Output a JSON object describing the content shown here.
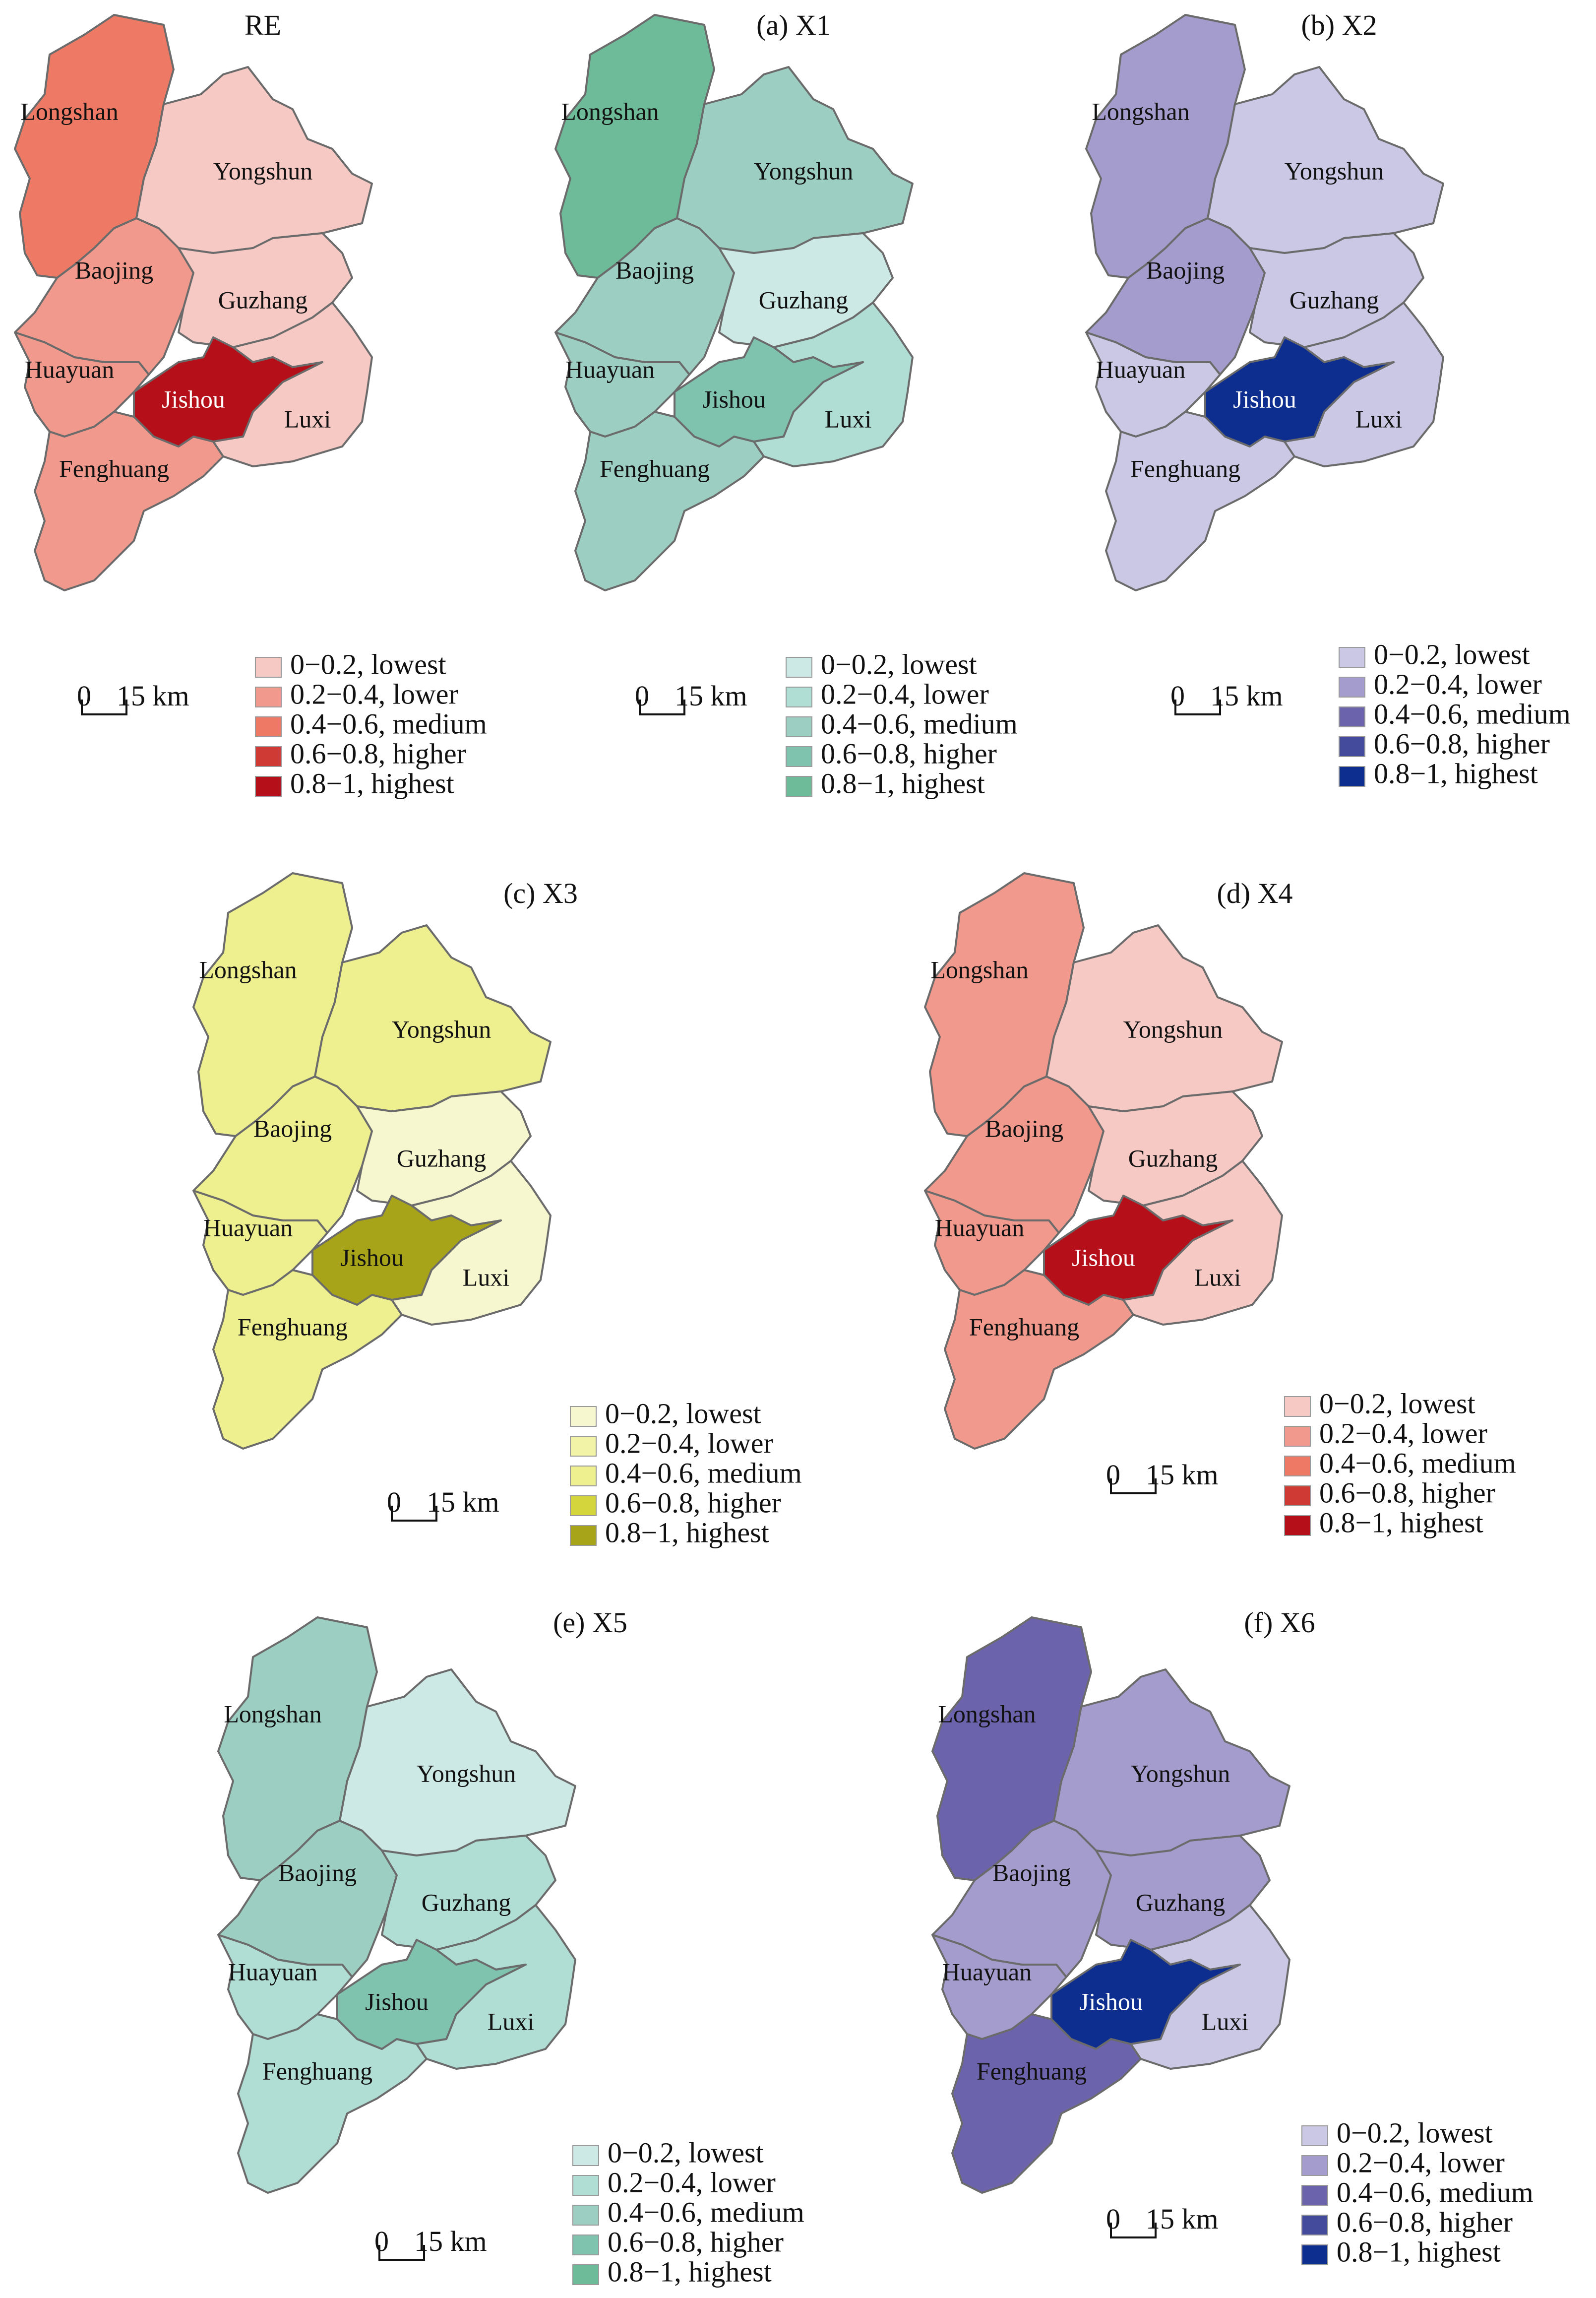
{
  "regions": [
    "Longshan",
    "Yongshun",
    "Baojing",
    "Guzhang",
    "Huayuan",
    "Jishou",
    "Luxi",
    "Fenghuang"
  ],
  "scale": {
    "zero": "0",
    "distance": "15 km"
  },
  "panels": [
    {
      "title": "RE",
      "palette": [
        "#f6c9c4",
        "#f1998c",
        "#ee7a66",
        "#d03a34",
        "#b5101a"
      ],
      "levels": {
        "Longshan": 2,
        "Yongshun": 0,
        "Baojing": 1,
        "Guzhang": 0,
        "Huayuan": 1,
        "Jishou": 4,
        "Luxi": 0,
        "Fenghuang": 1
      },
      "legend": [
        "0−0.2, lowest",
        "0.2−0.4, lower",
        "0.4−0.6, medium",
        "0.6−0.8, higher",
        "0.8−1, highest"
      ]
    },
    {
      "title": "(a) X1",
      "palette": [
        "#cde9e5",
        "#b0ddd4",
        "#9ccfc2",
        "#7fc2ad",
        "#6dbb99"
      ],
      "levels": {
        "Longshan": 4,
        "Yongshun": 2,
        "Baojing": 2,
        "Guzhang": 0,
        "Huayuan": 2,
        "Jishou": 3,
        "Luxi": 1,
        "Fenghuang": 2
      },
      "legend": [
        "0−0.2, lowest",
        "0.2−0.4, lower",
        "0.4−0.6, medium",
        "0.6−0.8, higher",
        "0.8−1, highest"
      ]
    },
    {
      "title": "(b) X2",
      "palette": [
        "#cbc8e6",
        "#a49ccd",
        "#6c63ad",
        "#444a9c",
        "#0e2e8f"
      ],
      "levels": {
        "Longshan": 1,
        "Yongshun": 0,
        "Baojing": 1,
        "Guzhang": 0,
        "Huayuan": 0,
        "Jishou": 4,
        "Luxi": 0,
        "Fenghuang": 0
      },
      "legend": [
        "0−0.2, lowest",
        "0.2−0.4, lower",
        "0.4−0.6, medium",
        "0.6−0.8, higher",
        "0.8−1, highest"
      ]
    },
    {
      "title": "(c) X3",
      "palette": [
        "#f6f6cf",
        "#f2f3a7",
        "#eef08f",
        "#d4d43c",
        "#a7a419"
      ],
      "levels": {
        "Longshan": 2,
        "Yongshun": 2,
        "Baojing": 2,
        "Guzhang": 0,
        "Huayuan": 2,
        "Jishou": 4,
        "Luxi": 0,
        "Fenghuang": 2
      },
      "legend": [
        "0−0.2, lowest",
        "0.2−0.4, lower",
        "0.4−0.6, medium",
        "0.6−0.8, higher",
        "0.8−1, highest"
      ]
    },
    {
      "title": "(d) X4",
      "palette": [
        "#f6c9c4",
        "#f1998c",
        "#ee7a66",
        "#d03a34",
        "#b5101a"
      ],
      "levels": {
        "Longshan": 1,
        "Yongshun": 0,
        "Baojing": 1,
        "Guzhang": 0,
        "Huayuan": 1,
        "Jishou": 4,
        "Luxi": 0,
        "Fenghuang": 1
      },
      "legend": [
        "0−0.2, lowest",
        "0.2−0.4, lower",
        "0.4−0.6, medium",
        "0.6−0.8, higher",
        "0.8−1, highest"
      ]
    },
    {
      "title": "(e) X5",
      "palette": [
        "#cde9e5",
        "#b0ddd4",
        "#9ccfc2",
        "#7fc2ad",
        "#6dbb99"
      ],
      "levels": {
        "Longshan": 2,
        "Yongshun": 0,
        "Baojing": 2,
        "Guzhang": 1,
        "Huayuan": 1,
        "Jishou": 3,
        "Luxi": 1,
        "Fenghuang": 1
      },
      "legend": [
        "0−0.2, lowest",
        "0.2−0.4, lower",
        "0.4−0.6, medium",
        "0.6−0.8, higher",
        "0.8−1, highest"
      ]
    },
    {
      "title": "(f) X6",
      "palette": [
        "#cbc8e6",
        "#a49ccd",
        "#6c63ad",
        "#444a9c",
        "#0e2e8f"
      ],
      "levels": {
        "Longshan": 2,
        "Yongshun": 1,
        "Baojing": 1,
        "Guzhang": 1,
        "Huayuan": 1,
        "Jishou": 4,
        "Luxi": 0,
        "Fenghuang": 2
      },
      "legend": [
        "0−0.2, lowest",
        "0.2−0.4, lower",
        "0.4−0.6, medium",
        "0.6−0.8, higher",
        "0.8−1, highest"
      ]
    }
  ]
}
